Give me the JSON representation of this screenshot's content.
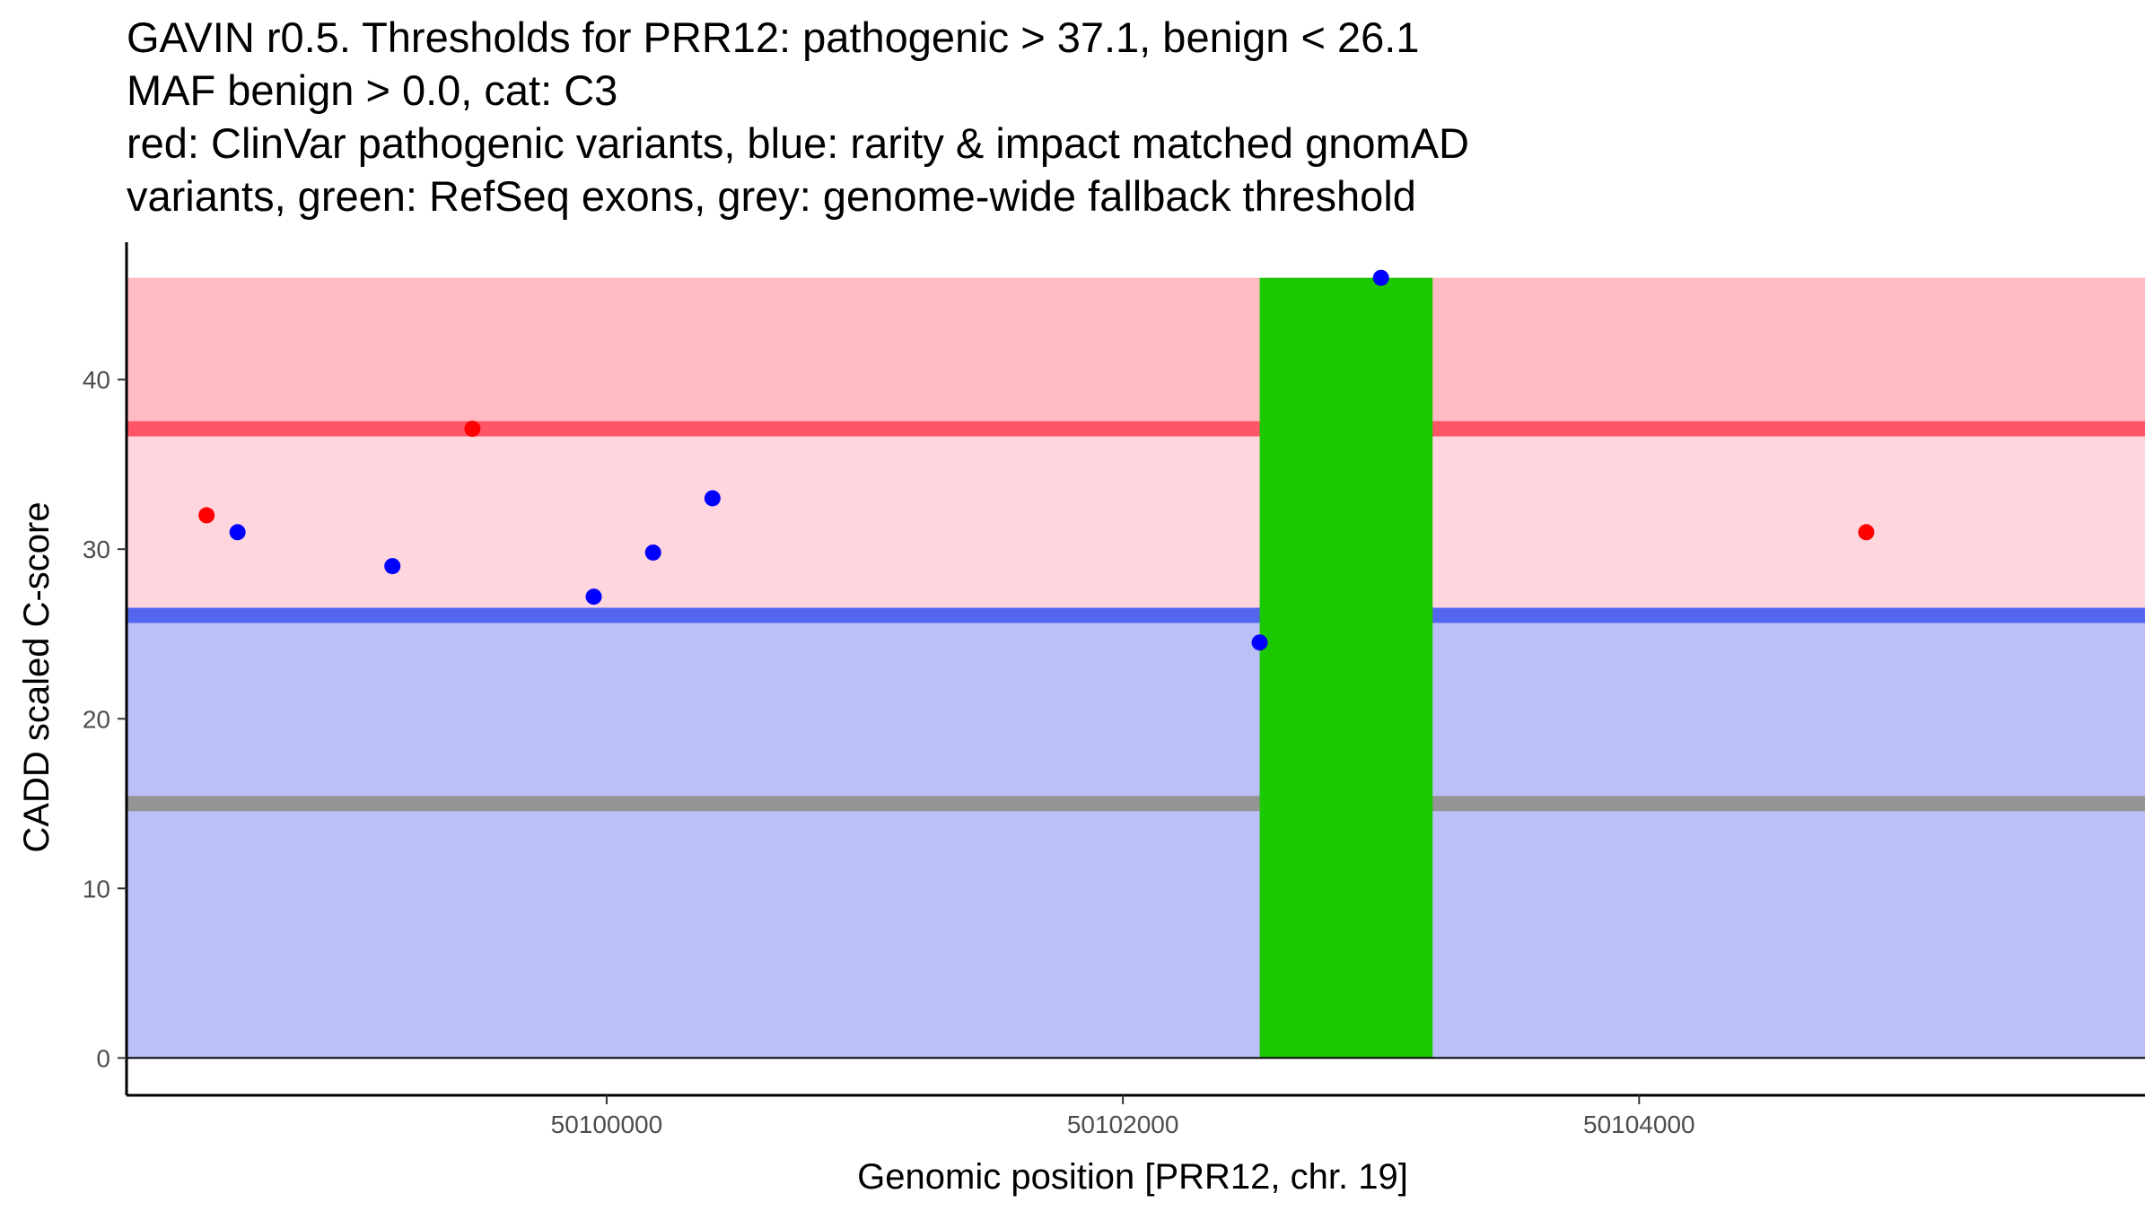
{
  "chart_data": {
    "type": "scatter",
    "title_lines": [
      "GAVIN r0.5. Thresholds for PRR12: pathogenic > 37.1, benign < 26.1",
      "MAF benign > 0.0, cat: C3",
      "red: ClinVar pathogenic variants, blue: rarity & impact matched gnomAD",
      "variants, green: RefSeq exons, grey: genome-wide fallback threshold"
    ],
    "xlabel": "Genomic position [PRR12, chr. 19]",
    "ylabel": "CADD scaled C-score",
    "xlim": [
      50098140,
      50105960
    ],
    "ylim": [
      -2.2,
      48.1
    ],
    "x_ticks": [
      50100000,
      50102000,
      50104000
    ],
    "y_ticks": [
      0,
      10,
      20,
      30,
      40
    ],
    "grid": false,
    "regions": {
      "benign": {
        "y": [
          0,
          26.1
        ],
        "color": "#BBC0F9"
      },
      "intermediate": {
        "y": [
          26.1,
          37.1
        ],
        "color": "#FFD6DD"
      },
      "pathogenic": {
        "y": [
          37.1,
          46
        ],
        "color": "#FFBBC1"
      }
    },
    "threshold_lines": [
      {
        "name": "benign threshold",
        "y": 26.1,
        "color": "#5566EE"
      },
      {
        "name": "pathogenic threshold",
        "y": 37.1,
        "color": "#FF5566"
      },
      {
        "name": "genome-wide fallback",
        "y": 15.0,
        "color": "#949494"
      }
    ],
    "exons": [
      {
        "start": 50102530,
        "end": 50103200,
        "color": "#1CC800",
        "ymax": 46
      }
    ],
    "series": [
      {
        "name": "ClinVar pathogenic variants",
        "color": "#FF0000",
        "points": [
          {
            "x": 50098450,
            "y": 32.0
          },
          {
            "x": 50099480,
            "y": 37.1
          },
          {
            "x": 50104880,
            "y": 31.0
          }
        ]
      },
      {
        "name": "rarity & impact matched gnomAD variants",
        "color": "#0000FF",
        "points": [
          {
            "x": 50098570,
            "y": 31.0
          },
          {
            "x": 50099170,
            "y": 29.0
          },
          {
            "x": 50099950,
            "y": 27.2
          },
          {
            "x": 50100180,
            "y": 29.8
          },
          {
            "x": 50100410,
            "y": 33.0
          },
          {
            "x": 50102530,
            "y": 24.5
          },
          {
            "x": 50103000,
            "y": 46.0
          }
        ]
      }
    ]
  }
}
